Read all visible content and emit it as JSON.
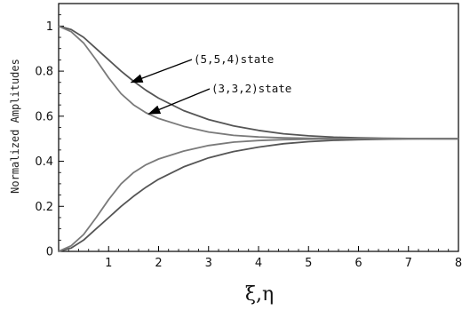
{
  "chart_data": {
    "type": "line",
    "xlabel": "ξ,η",
    "ylabel": "Normalized Amplitudes",
    "xlim": [
      0,
      8
    ],
    "ylim": [
      0,
      1.1
    ],
    "x_ticks": [
      "1",
      "2",
      "3",
      "4",
      "5",
      "6",
      "7",
      "8"
    ],
    "y_ticks": [
      "0",
      "0.2",
      "0.4",
      "0.6",
      "0.8",
      "1"
    ],
    "grid": false,
    "x": [
      0,
      0.25,
      0.5,
      0.75,
      1,
      1.25,
      1.5,
      1.75,
      2,
      2.5,
      3,
      3.5,
      4,
      4.5,
      5,
      5.5,
      6,
      6.5,
      7,
      7.5,
      8
    ],
    "series": [
      {
        "values": [
          1.0,
          0.985,
          0.95,
          0.9,
          0.85,
          0.8,
          0.755,
          0.715,
          0.68,
          0.625,
          0.585,
          0.557,
          0.537,
          0.522,
          0.513,
          0.507,
          0.504,
          0.502,
          0.501,
          0.5,
          0.5
        ],
        "color": "#555555"
      },
      {
        "values": [
          1.0,
          0.975,
          0.925,
          0.85,
          0.77,
          0.7,
          0.65,
          0.615,
          0.59,
          0.555,
          0.53,
          0.515,
          0.508,
          0.504,
          0.502,
          0.501,
          0.5,
          0.5,
          0.5,
          0.5,
          0.5
        ],
        "color": "#7a7a7a"
      },
      {
        "values": [
          0,
          0.015,
          0.05,
          0.1,
          0.15,
          0.2,
          0.245,
          0.285,
          0.32,
          0.375,
          0.415,
          0.443,
          0.463,
          0.478,
          0.487,
          0.493,
          0.496,
          0.498,
          0.499,
          0.5,
          0.5
        ],
        "color": "#555555"
      },
      {
        "values": [
          0,
          0.025,
          0.075,
          0.15,
          0.23,
          0.3,
          0.35,
          0.385,
          0.41,
          0.445,
          0.47,
          0.485,
          0.492,
          0.496,
          0.498,
          0.499,
          0.5,
          0.5,
          0.5,
          0.5,
          0.5
        ],
        "color": "#7a7a7a"
      }
    ],
    "annotations": [
      {
        "text": "(5,5,4)state",
        "arrow_to": [
          1.45,
          0.75
        ]
      },
      {
        "text": "(3,3,2)state",
        "arrow_to": [
          1.8,
          0.61
        ]
      }
    ]
  }
}
